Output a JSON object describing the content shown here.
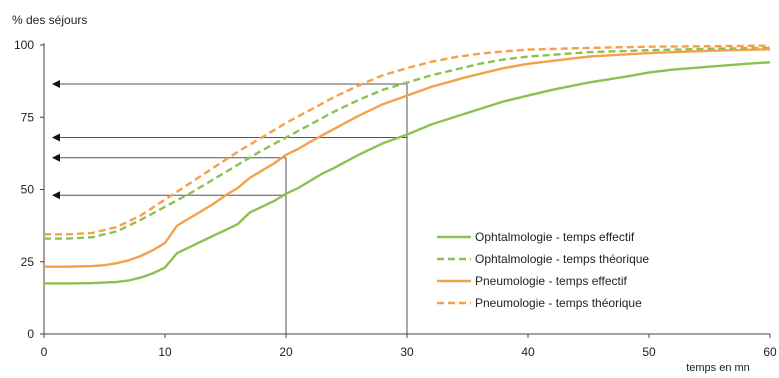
{
  "chart_data": {
    "type": "line",
    "ylabel": "% des séjours",
    "xlabel": "temps en mn",
    "xlim": [
      0,
      60
    ],
    "ylim": [
      0,
      100
    ],
    "x_ticks": [
      0,
      10,
      20,
      30,
      40,
      50,
      60
    ],
    "y_ticks": [
      0,
      25,
      50,
      75,
      100
    ],
    "grid": false,
    "legend_position": "bottom-right",
    "colors": {
      "green": "#8cc152",
      "orange": "#f5a04a",
      "guide": "#555555"
    },
    "series": [
      {
        "name": "Ophtalmologie - temps effectif",
        "color": "#8cc152",
        "dash": "solid",
        "x": [
          0,
          2,
          4,
          6,
          7,
          8,
          9,
          10,
          11,
          12,
          13,
          14,
          15,
          16,
          17,
          18,
          19,
          20,
          21,
          22,
          23,
          24,
          26,
          28,
          30,
          32,
          35,
          38,
          40,
          42,
          45,
          48,
          50,
          52,
          55,
          58,
          60
        ],
        "y": [
          17.5,
          17.5,
          17.6,
          18,
          18.5,
          19.5,
          21,
          23,
          28,
          30,
          32,
          34,
          36,
          38,
          42,
          44,
          46,
          48.5,
          50.5,
          53,
          55.5,
          57.5,
          62,
          66,
          69,
          72.5,
          76.5,
          80.5,
          82.5,
          84.5,
          87,
          89,
          90.5,
          91.5,
          92.5,
          93.5,
          94
        ]
      },
      {
        "name": "Ophtalmologie - temps théorique",
        "color": "#8cc152",
        "dash": "dashed",
        "x": [
          0,
          2,
          4,
          6,
          8,
          10,
          12,
          14,
          16,
          18,
          20,
          22,
          24,
          26,
          28,
          30,
          32,
          34,
          36,
          38,
          40,
          45,
          50,
          55,
          60
        ],
        "y": [
          33,
          33,
          33.5,
          35.5,
          39.5,
          44,
          48.5,
          53.5,
          58.5,
          63.5,
          68,
          72.5,
          77,
          81,
          84.5,
          87,
          89.5,
          91.5,
          93.5,
          95,
          96,
          97.5,
          98.2,
          98.7,
          99
        ]
      },
      {
        "name": "Pneumologie - temps effectif",
        "color": "#f5a04a",
        "dash": "solid",
        "x": [
          0,
          2,
          4,
          5,
          6,
          7,
          8,
          9,
          10,
          11,
          12,
          13,
          14,
          15,
          16,
          17,
          18,
          19,
          20,
          21,
          22,
          24,
          26,
          28,
          30,
          32,
          35,
          38,
          40,
          45,
          50,
          55,
          60
        ],
        "y": [
          23.3,
          23.3,
          23.5,
          23.8,
          24.5,
          25.5,
          27,
          29,
          31.5,
          37.5,
          40,
          42.5,
          45,
          48,
          50.5,
          54,
          56.5,
          59,
          62,
          64,
          66.5,
          71,
          75.5,
          79.5,
          82.5,
          85.5,
          89,
          92,
          93.5,
          96,
          97.2,
          98,
          98.5
        ]
      },
      {
        "name": "Pneumologie - temps théorique",
        "color": "#f5a04a",
        "dash": "dashed",
        "x": [
          0,
          2,
          4,
          6,
          8,
          10,
          12,
          14,
          16,
          18,
          20,
          22,
          24,
          26,
          28,
          30,
          32,
          34,
          36,
          38,
          40,
          45,
          50,
          55,
          60
        ],
        "y": [
          34.5,
          34.5,
          35,
          37,
          41,
          46.5,
          52,
          57.5,
          63,
          68,
          73,
          77.5,
          82,
          86,
          89.5,
          92,
          94.2,
          95.8,
          97,
          97.8,
          98.4,
          99,
          99.4,
          99.6,
          99.8
        ]
      }
    ],
    "guides": [
      {
        "x": 20,
        "y": 61
      },
      {
        "x": 20,
        "y": 48
      },
      {
        "x": 30,
        "y": 86.5
      },
      {
        "x": 30,
        "y": 68
      }
    ]
  }
}
